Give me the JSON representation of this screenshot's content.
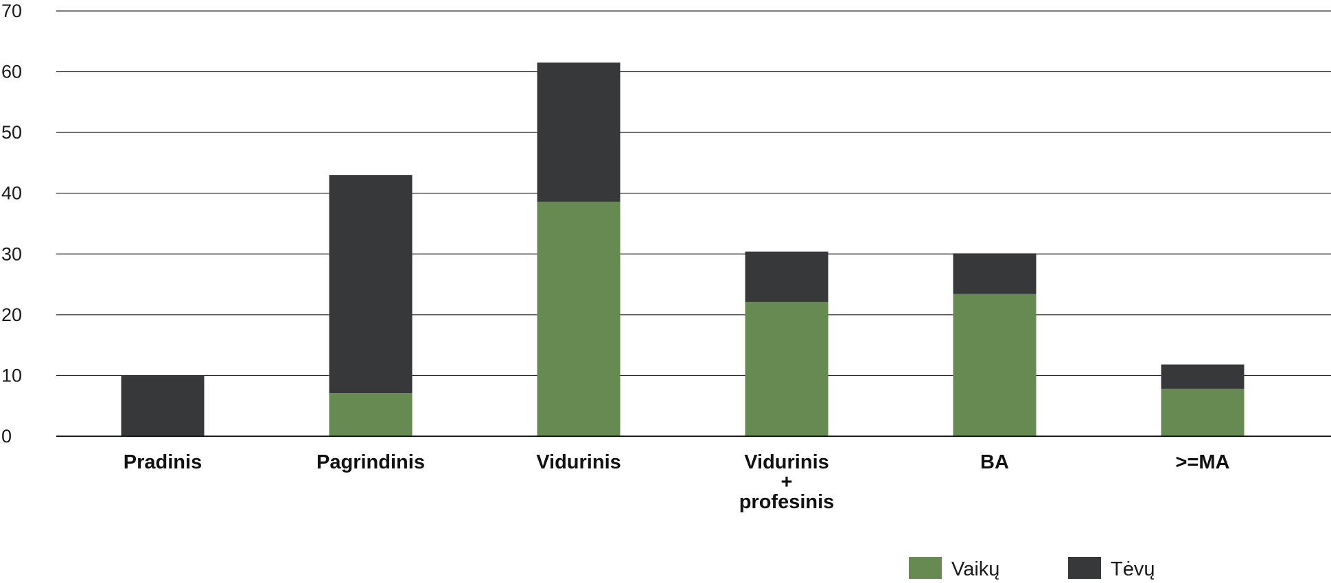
{
  "chart_data": {
    "type": "bar",
    "stacked": true,
    "categories": [
      [
        "Pradinis"
      ],
      [
        "Pagrindinis"
      ],
      [
        "Vidurinis"
      ],
      [
        "Vidurinis",
        "+",
        "profesinis"
      ],
      [
        "BA"
      ],
      [
        ">=MA"
      ]
    ],
    "series": [
      {
        "name": "Vaikų",
        "color": "#668a52",
        "values": [
          0,
          7.1,
          38.6,
          22.1,
          23.4,
          7.8
        ]
      },
      {
        "name": "Tėvų",
        "color": "#37383a",
        "values": [
          10.0,
          35.9,
          22.9,
          8.3,
          6.7,
          4.0
        ]
      }
    ],
    "ylim": [
      0,
      70
    ],
    "yticks": [
      0,
      10,
      20,
      30,
      40,
      50,
      60,
      70
    ],
    "grid": true,
    "legend_position": "bottom-right"
  }
}
